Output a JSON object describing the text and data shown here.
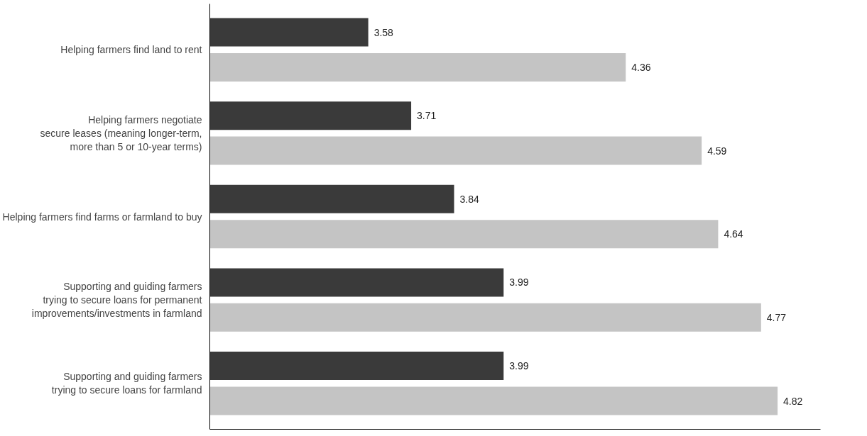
{
  "chart_data": {
    "type": "bar",
    "orientation": "horizontal",
    "categories": [
      "Helping farmers find land to rent",
      "Helping farmers negotiate\nsecure leases (meaning longer-term,\nmore than 5 or 10-year terms)",
      "Helping farmers find farms or farmland to buy",
      "Supporting and guiding farmers\ntrying to secure loans for permanent\nimprovements/investments in farmland",
      "Supporting and guiding farmers\ntrying to secure loans for farmland"
    ],
    "series": [
      {
        "color": "#3a3a3a",
        "values": [
          3.58,
          3.71,
          3.84,
          3.99,
          3.99
        ]
      },
      {
        "color": "#c4c4c4",
        "values": [
          4.36,
          4.59,
          4.64,
          4.77,
          4.82
        ]
      }
    ],
    "xlim": [
      3.1,
      4.95
    ],
    "data_labels": true,
    "grid": false,
    "tick_labels": "y"
  }
}
